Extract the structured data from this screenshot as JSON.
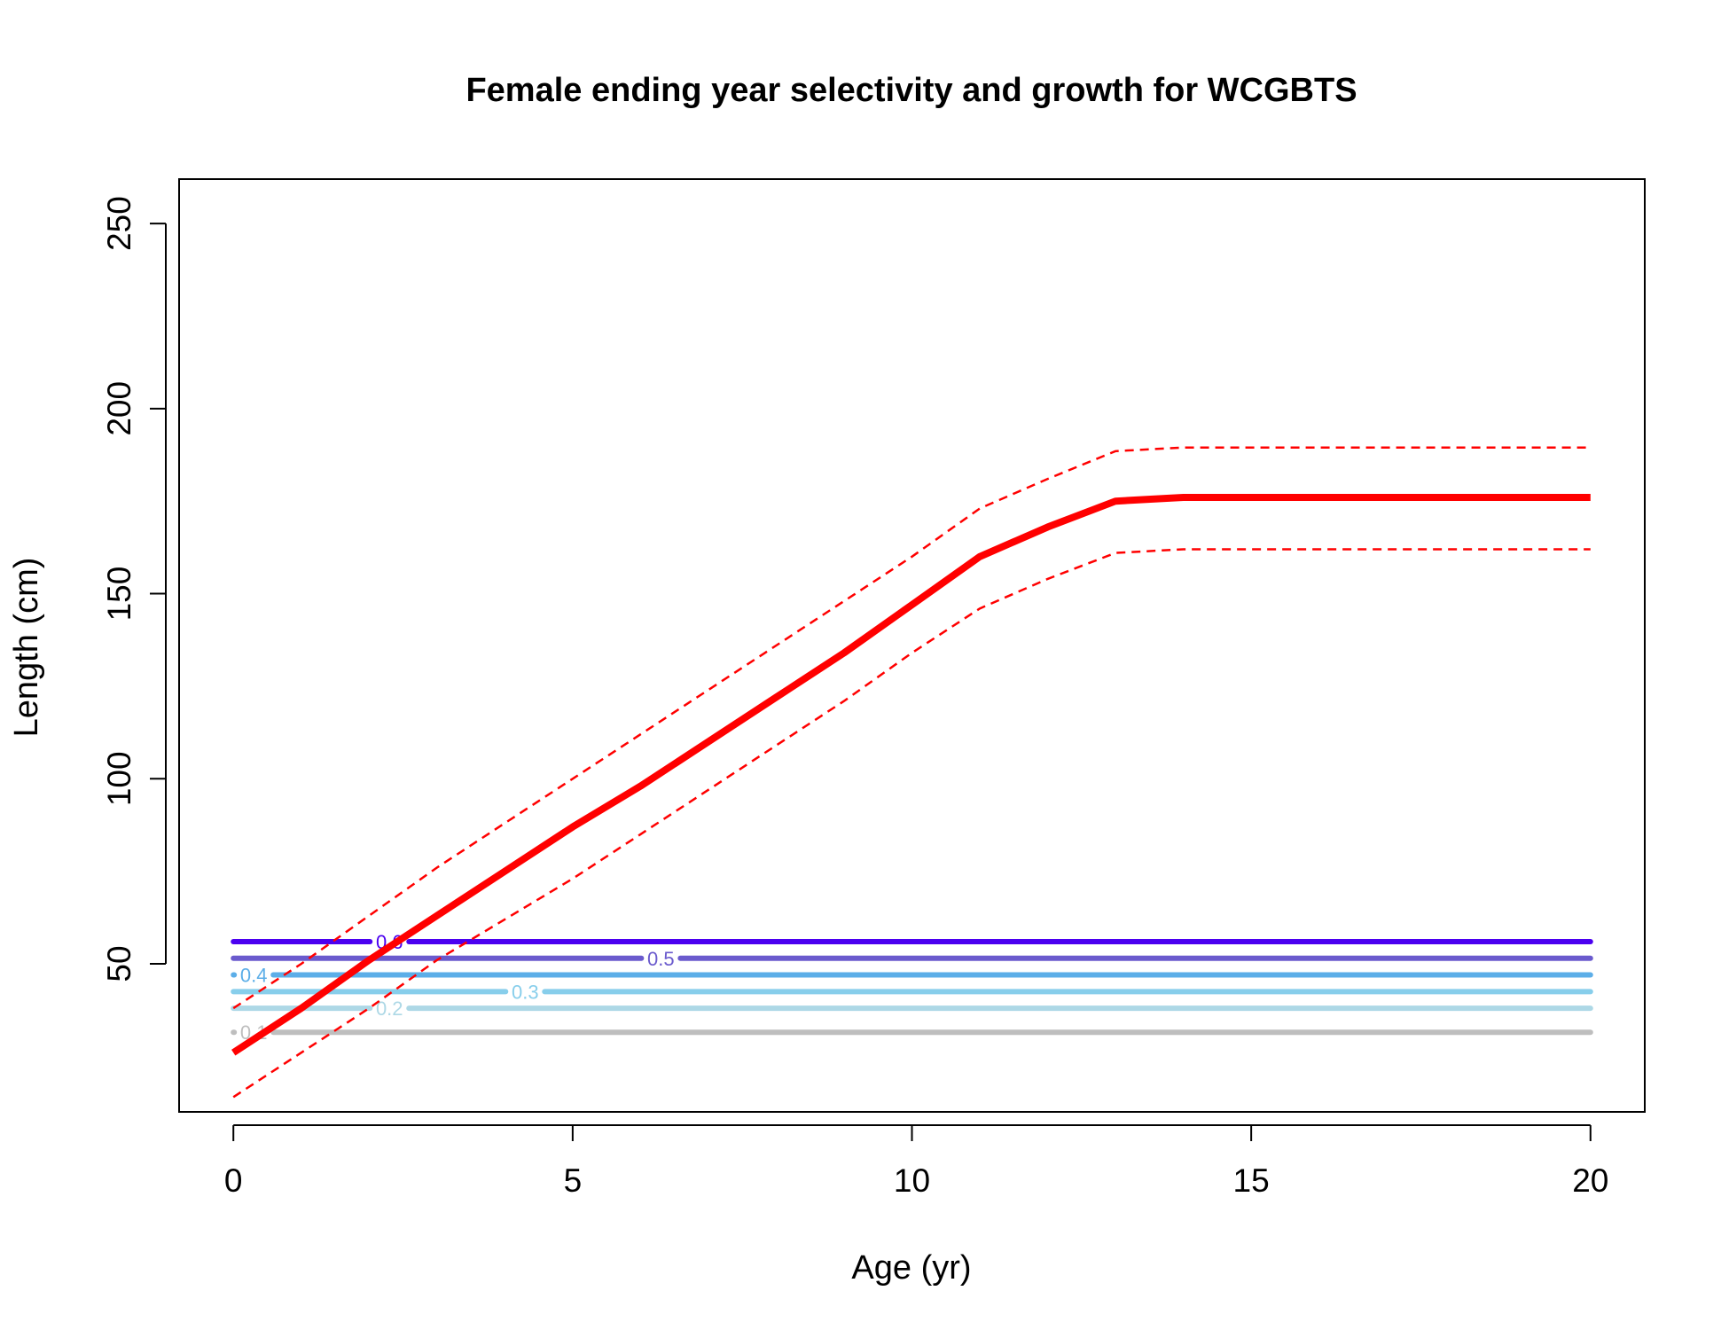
{
  "chart_data": {
    "type": "line",
    "title": "Female ending year selectivity and growth for WCGBTS",
    "xlabel": "Age (yr)",
    "ylabel": "Length (cm)",
    "xlim": [
      -0.8,
      20.8
    ],
    "ylim": [
      10,
      262
    ],
    "xticks": [
      0,
      5,
      10,
      15,
      20
    ],
    "yticks": [
      50,
      100,
      150,
      200,
      250
    ],
    "grid": false,
    "growth": {
      "color": "#ff0000",
      "mean": {
        "x": [
          0,
          1,
          2,
          3,
          4,
          5,
          6,
          7,
          8,
          9,
          10,
          11,
          12,
          13,
          14,
          15,
          16,
          17,
          18,
          19,
          20
        ],
        "y": [
          26,
          38,
          51,
          63,
          75,
          87,
          98,
          110,
          122,
          134,
          147,
          160,
          168,
          175,
          176,
          176,
          176,
          176,
          176,
          176,
          176
        ]
      },
      "upper": {
        "x": [
          0,
          1,
          2,
          3,
          4,
          5,
          6,
          7,
          8,
          9,
          10,
          11,
          12,
          13,
          14,
          15,
          16,
          17,
          18,
          19,
          20
        ],
        "y": [
          38,
          50,
          63,
          76,
          88,
          100,
          112,
          124,
          136,
          148,
          160,
          173,
          181,
          188.5,
          189.5,
          189.5,
          189.5,
          189.5,
          189.5,
          189.5,
          189.5
        ]
      },
      "lower": {
        "x": [
          0,
          1,
          2,
          3,
          4,
          5,
          6,
          7,
          8,
          9,
          10,
          11,
          12,
          13,
          14,
          15,
          16,
          17,
          18,
          19,
          20
        ],
        "y": [
          14,
          26,
          38,
          51,
          62,
          73,
          85,
          97,
          109,
          121,
          134,
          146,
          154,
          161,
          162,
          162,
          162,
          162,
          162,
          162,
          162
        ]
      }
    },
    "selectivity_contours": [
      {
        "label": "0.1",
        "y": 31.5,
        "color": "#bebebe",
        "label_x": 0.3
      },
      {
        "label": "0.2",
        "y": 38,
        "color": "#add8e6",
        "label_x": 2.3
      },
      {
        "label": "0.3",
        "y": 42.5,
        "color": "#87ceeb",
        "label_x": 4.3
      },
      {
        "label": "0.4",
        "y": 47,
        "color": "#5caee8",
        "label_x": 0.3
      },
      {
        "label": "0.5",
        "y": 51.5,
        "color": "#6a5acd",
        "label_x": 6.3
      },
      {
        "label": "0.6",
        "y": 56,
        "color": "#4b00f0",
        "label_x": 2.3
      }
    ]
  }
}
